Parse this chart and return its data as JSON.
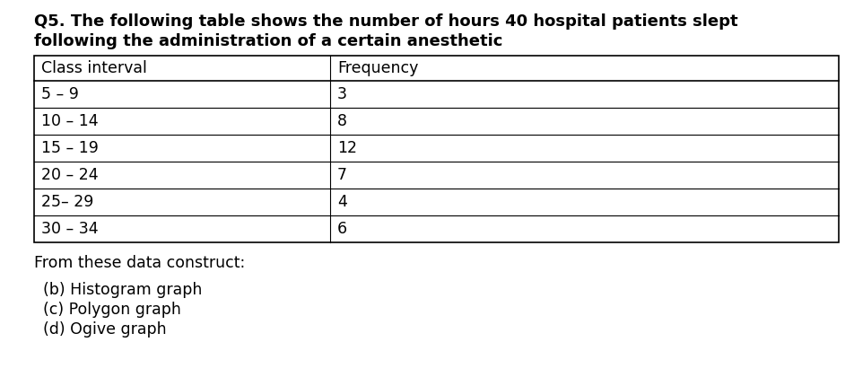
{
  "title_line1": "Q5. The following table shows the number of hours 40 hospital patients slept",
  "title_line2": "following the administration of a certain anesthetic",
  "col1_header": "Class interval",
  "col2_header": "Frequency",
  "rows": [
    [
      "5 – 9",
      "3"
    ],
    [
      "10 – 14",
      "8"
    ],
    [
      "15 – 19",
      "12"
    ],
    [
      "20 – 24",
      "7"
    ],
    [
      "25– 29",
      "4"
    ],
    [
      "30 – 34",
      "6"
    ]
  ],
  "footer": "From these data construct:",
  "items": [
    "(b) Histogram graph",
    "(c) Polygon graph",
    "(d) Ogive graph"
  ],
  "bg_color": "#ffffff",
  "text_color": "#000000",
  "title_fontsize": 13.0,
  "body_fontsize": 12.5
}
